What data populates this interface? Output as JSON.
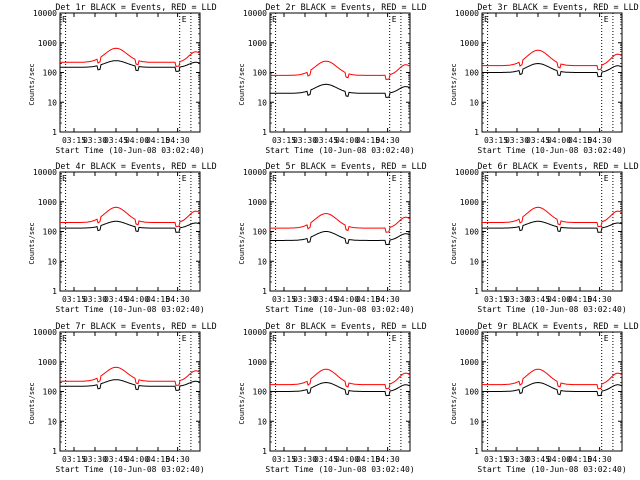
{
  "colors": {
    "events": "#000000",
    "lld": "#ff0000",
    "axes": "#000000",
    "background": "#ffffff"
  },
  "xlabel": "Start Time (10-Jun-08 03:02:40)",
  "ylabel": "Counts/sec",
  "x_ticks": [
    "03:15",
    "03:30",
    "03:45",
    "04:00",
    "04:15",
    "04:30"
  ],
  "y_ticks": [
    "1",
    "10",
    "100",
    "1000",
    "10000"
  ],
  "flag_letter": "E",
  "chart_data": [
    {
      "type": "line",
      "title": "Det 1r BLACK = Events, RED = LLD",
      "y_scale": "log",
      "ylim": [
        1,
        10000
      ],
      "series": [
        {
          "name": "Events",
          "color": "#000000",
          "low": 150,
          "high": 250
        },
        {
          "name": "LLD",
          "color": "#ff0000",
          "low": 220,
          "high": 650
        }
      ]
    },
    {
      "type": "line",
      "title": "Det 2r BLACK = Events, RED = LLD",
      "y_scale": "log",
      "ylim": [
        1,
        10000
      ],
      "series": [
        {
          "name": "Events",
          "color": "#000000",
          "low": 20,
          "high": 40
        },
        {
          "name": "LLD",
          "color": "#ff0000",
          "low": 80,
          "high": 240
        }
      ]
    },
    {
      "type": "line",
      "title": "Det 3r BLACK = Events, RED = LLD",
      "y_scale": "log",
      "ylim": [
        1,
        10000
      ],
      "series": [
        {
          "name": "Events",
          "color": "#000000",
          "low": 100,
          "high": 200
        },
        {
          "name": "LLD",
          "color": "#ff0000",
          "low": 170,
          "high": 560
        }
      ]
    },
    {
      "type": "line",
      "title": "Det 4r BLACK = Events, RED = LLD",
      "y_scale": "log",
      "ylim": [
        1,
        10000
      ],
      "series": [
        {
          "name": "Events",
          "color": "#000000",
          "low": 130,
          "high": 220
        },
        {
          "name": "LLD",
          "color": "#ff0000",
          "low": 200,
          "high": 650
        }
      ]
    },
    {
      "type": "line",
      "title": "Det 5r BLACK = Events, RED = LLD",
      "y_scale": "log",
      "ylim": [
        1,
        10000
      ],
      "series": [
        {
          "name": "Events",
          "color": "#000000",
          "low": 50,
          "high": 100
        },
        {
          "name": "LLD",
          "color": "#ff0000",
          "low": 130,
          "high": 400
        }
      ]
    },
    {
      "type": "line",
      "title": "Det 6r BLACK = Events, RED = LLD",
      "y_scale": "log",
      "ylim": [
        1,
        10000
      ],
      "series": [
        {
          "name": "Events",
          "color": "#000000",
          "low": 130,
          "high": 220
        },
        {
          "name": "LLD",
          "color": "#ff0000",
          "low": 200,
          "high": 650
        }
      ]
    },
    {
      "type": "line",
      "title": "Det 7r BLACK = Events, RED = LLD",
      "y_scale": "log",
      "ylim": [
        1,
        10000
      ],
      "series": [
        {
          "name": "Events",
          "color": "#000000",
          "low": 150,
          "high": 250
        },
        {
          "name": "LLD",
          "color": "#ff0000",
          "low": 220,
          "high": 650
        }
      ]
    },
    {
      "type": "line",
      "title": "Det 8r BLACK = Events, RED = LLD",
      "y_scale": "log",
      "ylim": [
        1,
        10000
      ],
      "series": [
        {
          "name": "Events",
          "color": "#000000",
          "low": 100,
          "high": 200
        },
        {
          "name": "LLD",
          "color": "#ff0000",
          "low": 170,
          "high": 560
        }
      ]
    },
    {
      "type": "line",
      "title": "Det 9r BLACK = Events, RED = LLD",
      "y_scale": "log",
      "ylim": [
        1,
        10000
      ],
      "series": [
        {
          "name": "Events",
          "color": "#000000",
          "low": 100,
          "high": 200
        },
        {
          "name": "LLD",
          "color": "#ff0000",
          "low": 170,
          "high": 560
        }
      ]
    }
  ]
}
